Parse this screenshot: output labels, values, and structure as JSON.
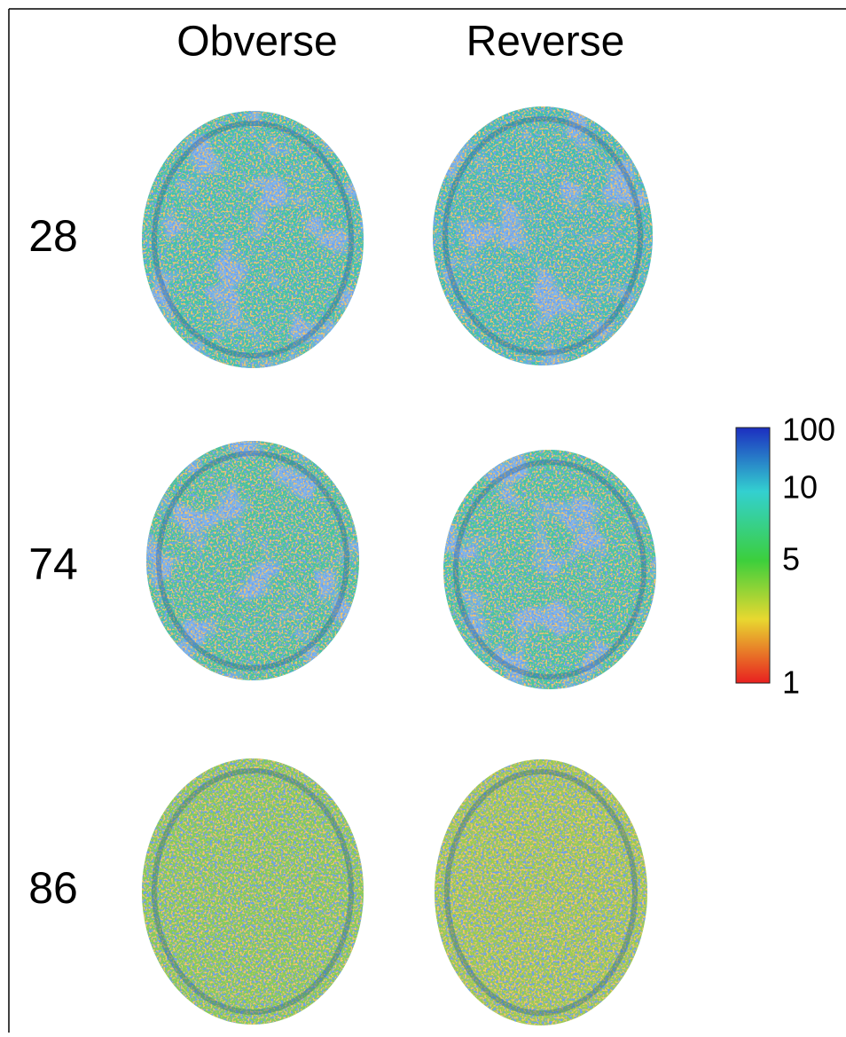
{
  "header": {
    "columns": [
      "Obverse",
      "Reverse"
    ]
  },
  "rows": [
    {
      "label": "28"
    },
    {
      "label": "74"
    },
    {
      "label": "86"
    }
  ],
  "colorbar": {
    "labels": [
      "100",
      "10",
      "5",
      "1"
    ]
  }
}
